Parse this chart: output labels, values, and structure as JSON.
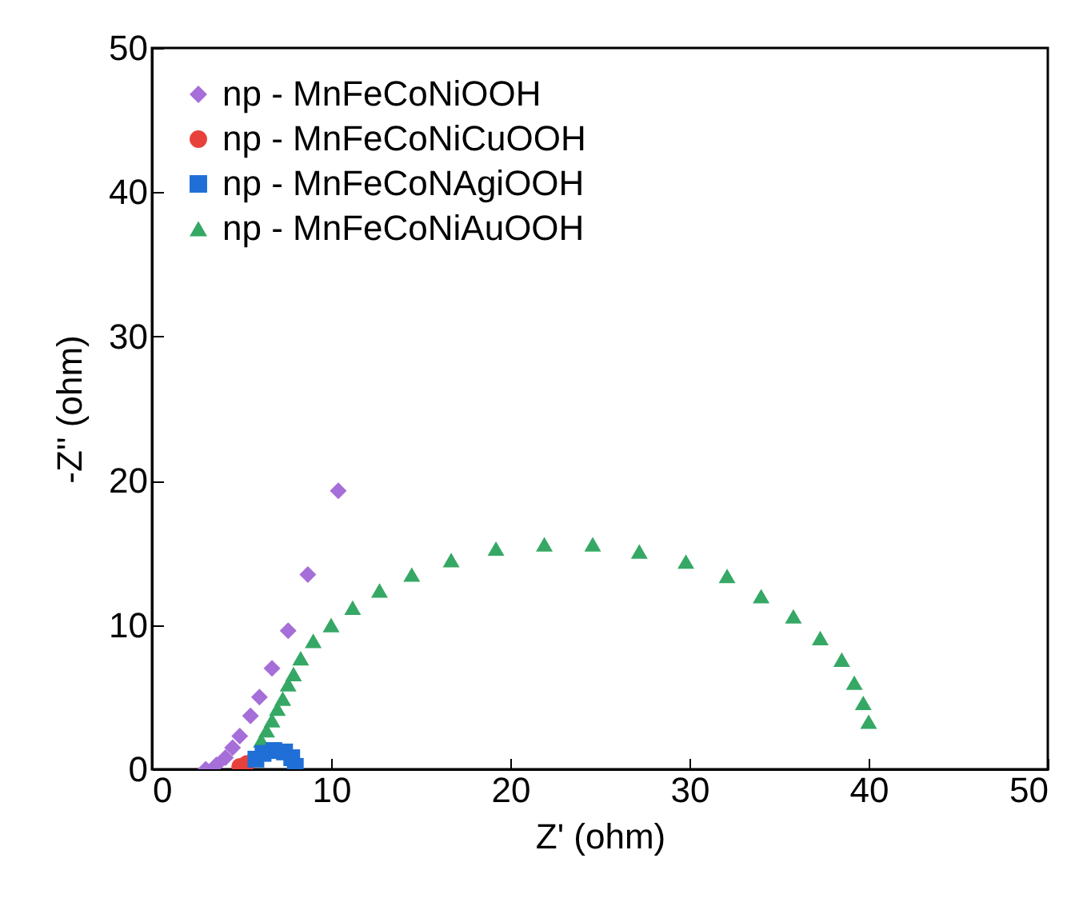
{
  "chart_data": {
    "type": "scatter",
    "xlabel": "Z' (ohm)",
    "ylabel": "-Z'' (ohm)",
    "xlim": [
      0,
      50
    ],
    "ylim": [
      0,
      50
    ],
    "xticks": [
      0,
      10,
      20,
      30,
      40,
      50
    ],
    "yticks": [
      0,
      10,
      20,
      30,
      40,
      50
    ],
    "grid": false,
    "legend": "top left",
    "series": [
      {
        "name": "np - MnFeCoNiOOH",
        "color": "#a66ed8",
        "marker": "diamond",
        "x": [
          3.0,
          3.6,
          4.1,
          4.5,
          4.9,
          5.5,
          6.0,
          6.7,
          7.6,
          8.7,
          10.4
        ],
        "values": [
          0.0,
          0.3,
          0.8,
          1.5,
          2.3,
          3.7,
          5.0,
          7.0,
          9.6,
          13.5,
          19.3
        ]
      },
      {
        "name": "np - MnFeCoNiCuOOH",
        "color": "#e8413c",
        "marker": "circle",
        "x": [
          4.9,
          5.3
        ],
        "values": [
          0.2,
          0.4
        ]
      },
      {
        "name": "np - MnFeCoNAgiOOH",
        "color": "#1f6fd6",
        "marker": "square",
        "x": [
          5.8,
          6.2,
          6.8,
          7.4,
          7.8,
          8.0
        ],
        "values": [
          0.7,
          1.1,
          1.3,
          1.2,
          0.8,
          0.2
        ]
      },
      {
        "name": "np - MnFeCoNiAuOOH",
        "color": "#35a865",
        "marker": "triangle",
        "x": [
          6.1,
          6.4,
          6.7,
          7.0,
          7.3,
          7.6,
          7.9,
          8.3,
          9.0,
          10.0,
          11.2,
          12.7,
          14.5,
          16.7,
          19.2,
          21.9,
          24.6,
          27.2,
          29.8,
          32.1,
          34.0,
          35.8,
          37.3,
          38.5,
          39.2,
          39.7,
          40.0
        ],
        "values": [
          2.0,
          2.7,
          3.4,
          4.2,
          4.9,
          5.9,
          6.6,
          7.7,
          8.9,
          10.0,
          11.2,
          12.4,
          13.5,
          14.5,
          15.3,
          15.6,
          15.6,
          15.1,
          14.4,
          13.4,
          12.0,
          10.6,
          9.1,
          7.6,
          6.0,
          4.6,
          3.3
        ]
      }
    ]
  }
}
